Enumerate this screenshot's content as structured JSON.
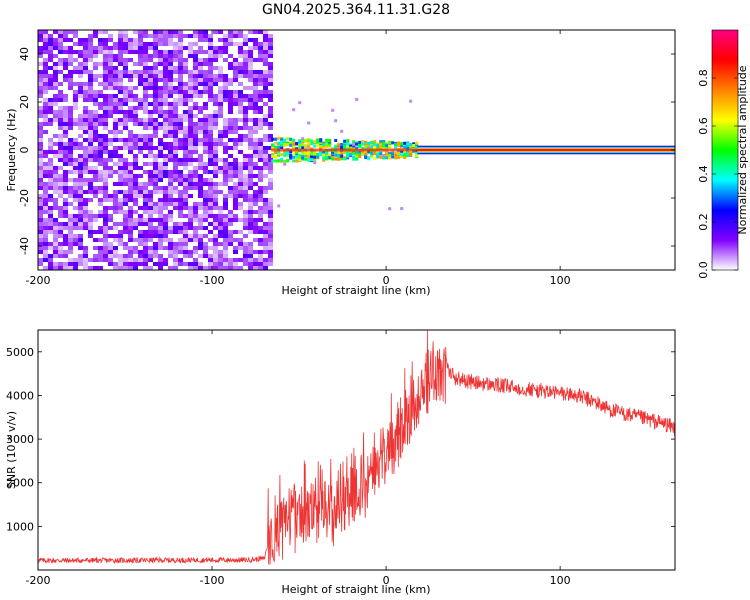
{
  "chart_data": [
    {
      "type": "heatmap",
      "title": "GN04.2025.364.11.31.G28",
      "xlabel": "Height of straight line (km)",
      "ylabel": "Frequency (Hz)",
      "xlim": [
        -200,
        166
      ],
      "ylim": [
        -50,
        50
      ],
      "xticks": [
        -200,
        -100,
        0,
        100
      ],
      "yticks": [
        -40,
        -20,
        0,
        20,
        40
      ],
      "colorbar": {
        "label": "Normalized spectral amplitude",
        "range": [
          0,
          1
        ],
        "ticks": [
          0.0,
          0.2,
          0.4,
          0.6,
          0.8
        ],
        "colors": [
          "#ffffff",
          "#8000ff",
          "#0000ff",
          "#00ffff",
          "#00ff00",
          "#ffff00",
          "#ff8000",
          "#ff0000",
          "#ff0080"
        ]
      },
      "regions": [
        {
          "name": "noise",
          "x_range": [
            -200,
            -66
          ],
          "freq_range": [
            -50,
            50
          ],
          "amplitude": "low (0.05-0.2)"
        },
        {
          "name": "transition",
          "x_range": [
            -66,
            18
          ],
          "freq_center": 0,
          "freq_half_width": 5,
          "amplitude": "0.3-0.8"
        },
        {
          "name": "carrier",
          "x_range": [
            18,
            166
          ],
          "freq_center": 0,
          "freq_half_width": 1,
          "amplitude": 1.0
        }
      ]
    },
    {
      "type": "line",
      "title": "",
      "xlabel": "Height of straight line (km)",
      "ylabel": "SNR (10 * v/v)",
      "xlim": [
        -200,
        166
      ],
      "ylim": [
        0,
        5500
      ],
      "xticks": [
        -200,
        -100,
        0,
        100
      ],
      "yticks": [
        1000,
        2000,
        3000,
        4000,
        5000
      ],
      "series": [
        {
          "name": "SNR",
          "color": "#ee3333",
          "x": [
            -200,
            -150,
            -100,
            -80,
            -70,
            -66,
            -60,
            -50,
            -40,
            -30,
            -20,
            -10,
            0,
            10,
            20,
            30,
            35,
            40,
            50,
            60,
            70,
            80,
            90,
            100,
            110,
            120,
            130,
            140,
            150,
            160,
            166
          ],
          "y": [
            220,
            220,
            230,
            230,
            260,
            900,
            1000,
            1150,
            1250,
            1400,
            1650,
            1950,
            2700,
            3300,
            4100,
            4500,
            4600,
            4400,
            4300,
            4250,
            4200,
            4150,
            4100,
            4050,
            4000,
            3850,
            3650,
            3550,
            3450,
            3350,
            3250
          ]
        }
      ]
    }
  ]
}
